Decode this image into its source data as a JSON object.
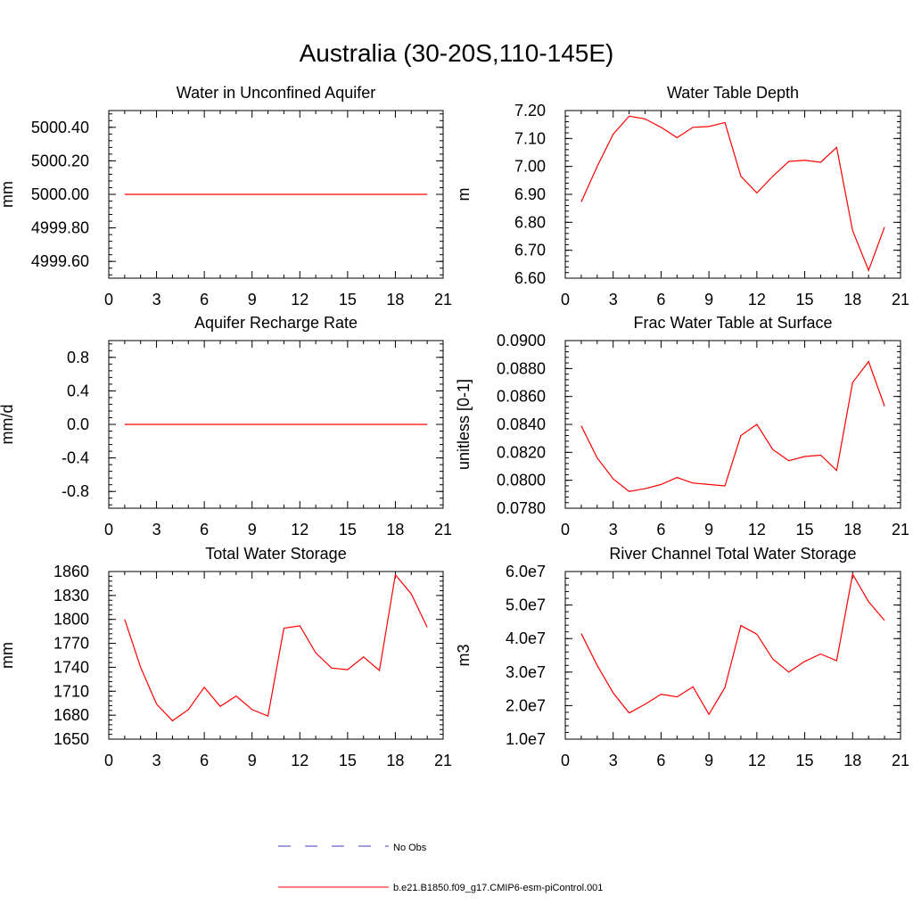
{
  "title": "Australia (30-20S,110-145E)",
  "colors": {
    "model": "#ff0000",
    "obs": "#3f3fbf",
    "axis": "#000000"
  },
  "legend": {
    "entries": [
      {
        "label": "No Obs",
        "style": "dashed",
        "color": "#3f3fbf"
      },
      {
        "label": "b.e21.B1850.f09_g17.CMIP6-esm-piControl.001",
        "style": "solid",
        "color": "#ff0000"
      }
    ]
  },
  "chart_data": [
    {
      "type": "line",
      "title": "Water in Unconfined Aquifer",
      "ylabel": "mm",
      "xlim": [
        0,
        21
      ],
      "ylim": [
        4999.5,
        5000.5
      ],
      "x_ticks": [
        "0",
        "3",
        "6",
        "9",
        "12",
        "15",
        "18",
        "21"
      ],
      "y_ticks": [
        {
          "value": 4999.6,
          "label": "4999.60"
        },
        {
          "value": 4999.8,
          "label": "4999.80"
        },
        {
          "value": 5000.0,
          "label": "5000.00"
        },
        {
          "value": 5000.2,
          "label": "5000.20"
        },
        {
          "value": 5000.4,
          "label": "5000.40"
        }
      ],
      "series": [
        {
          "name": "b.e21.B1850.f09_g17.CMIP6-esm-piControl.001",
          "x": [
            1,
            2,
            3,
            4,
            5,
            6,
            7,
            8,
            9,
            10,
            11,
            12,
            13,
            14,
            15,
            16,
            17,
            18,
            19,
            20
          ],
          "values": [
            5000,
            5000,
            5000,
            5000,
            5000,
            5000,
            5000,
            5000,
            5000,
            5000,
            5000,
            5000,
            5000,
            5000,
            5000,
            5000,
            5000,
            5000,
            5000,
            5000
          ]
        }
      ]
    },
    {
      "type": "line",
      "title": "Water Table Depth",
      "ylabel": "m",
      "xlim": [
        0,
        21
      ],
      "ylim": [
        6.6,
        7.2
      ],
      "x_ticks": [
        "0",
        "3",
        "6",
        "9",
        "12",
        "15",
        "18",
        "21"
      ],
      "y_ticks": [
        {
          "value": 6.6,
          "label": "6.60"
        },
        {
          "value": 6.7,
          "label": "6.70"
        },
        {
          "value": 6.8,
          "label": "6.80"
        },
        {
          "value": 6.9,
          "label": "6.90"
        },
        {
          "value": 7.0,
          "label": "7.00"
        },
        {
          "value": 7.1,
          "label": "7.10"
        },
        {
          "value": 7.2,
          "label": "7.20"
        }
      ],
      "series": [
        {
          "name": "b.e21.B1850.f09_g17.CMIP6-esm-piControl.001",
          "x": [
            1,
            2,
            3,
            4,
            5,
            6,
            7,
            8,
            9,
            10,
            11,
            12,
            13,
            14,
            15,
            16,
            17,
            18,
            19,
            20
          ],
          "values": [
            6.873,
            7.0,
            7.115,
            7.18,
            7.17,
            7.14,
            7.103,
            7.14,
            7.143,
            7.157,
            6.965,
            6.905,
            6.965,
            7.018,
            7.022,
            7.015,
            7.068,
            6.77,
            6.628,
            6.783
          ]
        }
      ]
    },
    {
      "type": "line",
      "title": "Aquifer Recharge Rate",
      "ylabel": "mm/d",
      "xlim": [
        0,
        21
      ],
      "ylim": [
        -1.0,
        1.0
      ],
      "x_ticks": [
        "0",
        "3",
        "6",
        "9",
        "12",
        "15",
        "18",
        "21"
      ],
      "y_ticks": [
        {
          "value": -0.8,
          "label": "-0.8"
        },
        {
          "value": -0.4,
          "label": "-0.4"
        },
        {
          "value": 0.0,
          "label": "0.0"
        },
        {
          "value": 0.4,
          "label": "0.4"
        },
        {
          "value": 0.8,
          "label": "0.8"
        }
      ],
      "series": [
        {
          "name": "b.e21.B1850.f09_g17.CMIP6-esm-piControl.001",
          "x": [
            1,
            2,
            3,
            4,
            5,
            6,
            7,
            8,
            9,
            10,
            11,
            12,
            13,
            14,
            15,
            16,
            17,
            18,
            19,
            20
          ],
          "values": [
            0,
            0,
            0,
            0,
            0,
            0,
            0,
            0,
            0,
            0,
            0,
            0,
            0,
            0,
            0,
            0,
            0,
            0,
            0,
            0
          ]
        }
      ]
    },
    {
      "type": "line",
      "title": "Frac Water Table at Surface",
      "ylabel": "unitless [0-1]",
      "xlim": [
        0,
        21
      ],
      "ylim": [
        0.078,
        0.09
      ],
      "x_ticks": [
        "0",
        "3",
        "6",
        "9",
        "12",
        "15",
        "18",
        "21"
      ],
      "y_ticks": [
        {
          "value": 0.078,
          "label": "0.0780"
        },
        {
          "value": 0.08,
          "label": "0.0800"
        },
        {
          "value": 0.082,
          "label": "0.0820"
        },
        {
          "value": 0.084,
          "label": "0.0840"
        },
        {
          "value": 0.086,
          "label": "0.0860"
        },
        {
          "value": 0.088,
          "label": "0.0880"
        },
        {
          "value": 0.09,
          "label": "0.0900"
        }
      ],
      "series": [
        {
          "name": "b.e21.B1850.f09_g17.CMIP6-esm-piControl.001",
          "x": [
            1,
            2,
            3,
            4,
            5,
            6,
            7,
            8,
            9,
            10,
            11,
            12,
            13,
            14,
            15,
            16,
            17,
            18,
            19,
            20
          ],
          "values": [
            0.0839,
            0.0816,
            0.0801,
            0.0792,
            0.0794,
            0.0797,
            0.0802,
            0.0798,
            0.0797,
            0.0796,
            0.0832,
            0.084,
            0.0822,
            0.0814,
            0.0817,
            0.0818,
            0.0807,
            0.087,
            0.0885,
            0.0853
          ]
        }
      ]
    },
    {
      "type": "line",
      "title": "Total Water Storage",
      "ylabel": "mm",
      "xlim": [
        0,
        21
      ],
      "ylim": [
        1650,
        1860
      ],
      "x_ticks": [
        "0",
        "3",
        "6",
        "9",
        "12",
        "15",
        "18",
        "21"
      ],
      "y_ticks": [
        {
          "value": 1650,
          "label": "1650"
        },
        {
          "value": 1680,
          "label": "1680"
        },
        {
          "value": 1710,
          "label": "1710"
        },
        {
          "value": 1740,
          "label": "1740"
        },
        {
          "value": 1770,
          "label": "1770"
        },
        {
          "value": 1800,
          "label": "1800"
        },
        {
          "value": 1830,
          "label": "1830"
        },
        {
          "value": 1860,
          "label": "1860"
        }
      ],
      "series": [
        {
          "name": "b.e21.B1850.f09_g17.CMIP6-esm-piControl.001",
          "x": [
            1,
            2,
            3,
            4,
            5,
            6,
            7,
            8,
            9,
            10,
            11,
            12,
            13,
            14,
            15,
            16,
            17,
            18,
            19,
            20
          ],
          "values": [
            1800,
            1740,
            1694,
            1673,
            1687,
            1715,
            1691,
            1704,
            1687,
            1679,
            1789,
            1792,
            1758,
            1739,
            1737,
            1753,
            1736,
            1856,
            1832,
            1790
          ]
        }
      ]
    },
    {
      "type": "line",
      "title": "River Channel Total Water Storage",
      "ylabel": "m3",
      "xlim": [
        0,
        21
      ],
      "ylim": [
        10000000,
        60000000
      ],
      "x_ticks": [
        "0",
        "3",
        "6",
        "9",
        "12",
        "15",
        "18",
        "21"
      ],
      "y_ticks": [
        {
          "value": 10000000,
          "label": "1.0e7"
        },
        {
          "value": 20000000,
          "label": "2.0e7"
        },
        {
          "value": 30000000,
          "label": "3.0e7"
        },
        {
          "value": 40000000,
          "label": "4.0e7"
        },
        {
          "value": 50000000,
          "label": "5.0e7"
        },
        {
          "value": 60000000,
          "label": "6.0e7"
        }
      ],
      "series": [
        {
          "name": "b.e21.B1850.f09_g17.CMIP6-esm-piControl.001",
          "x": [
            1,
            2,
            3,
            4,
            5,
            6,
            7,
            8,
            9,
            10,
            11,
            12,
            13,
            14,
            15,
            16,
            17,
            18,
            19,
            20
          ],
          "values": [
            41500000,
            32000000,
            23800000,
            17800000,
            20400000,
            23400000,
            22600000,
            25600000,
            17400000,
            25400000,
            43900000,
            41300000,
            33900000,
            30000000,
            33200000,
            35400000,
            33400000,
            59200000,
            51000000,
            45400000
          ]
        }
      ]
    }
  ]
}
